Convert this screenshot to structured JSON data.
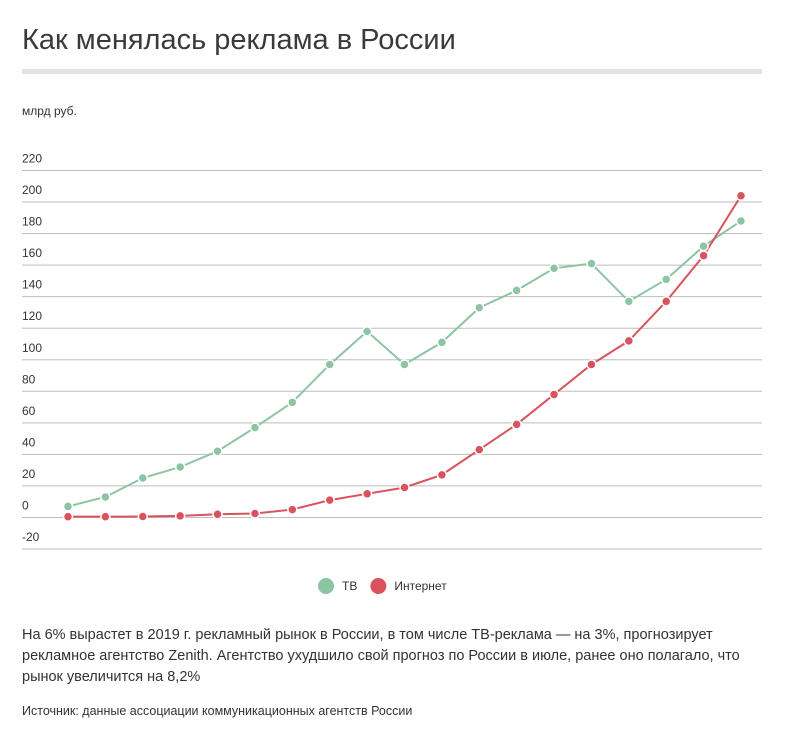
{
  "chart_data": {
    "type": "line",
    "title": "Как менялась реклама в России",
    "y_label": "млрд руб.",
    "categories": [
      null,
      null,
      null,
      null,
      null,
      null,
      null,
      null,
      null,
      null,
      null,
      null,
      null,
      null,
      null,
      null,
      null,
      null,
      null
    ],
    "series": [
      {
        "name": "ТВ",
        "color": "#8cc4a4",
        "values": [
          7,
          13,
          25,
          32,
          42,
          57,
          73,
          97,
          118,
          97,
          111,
          133,
          144,
          158,
          161,
          137,
          151,
          172,
          188
        ]
      },
      {
        "name": "Интернет",
        "color": "#d9525c",
        "values": [
          0.5,
          0.5,
          0.6,
          1,
          2,
          2.5,
          5,
          11,
          15,
          19,
          27,
          43,
          59,
          78,
          97,
          112,
          137,
          166,
          204
        ]
      }
    ],
    "ylim": [
      -20,
      220
    ],
    "yticks": [
      -20,
      0,
      20,
      40,
      60,
      80,
      100,
      120,
      140,
      160,
      180,
      200,
      220
    ],
    "grid": true,
    "note": "На 6% вырастет в 2019 г. рекламный рынок в России, в том числе ТВ-реклама — на 3%, прогнозирует рекламное агентство Zenith. Агентство ухудшило свой прогноз по России в июле, ранее оно полагало, что рынок увеличится на 8,2%",
    "source": "Источник: данные ассоциации коммуникационных агентств России"
  }
}
